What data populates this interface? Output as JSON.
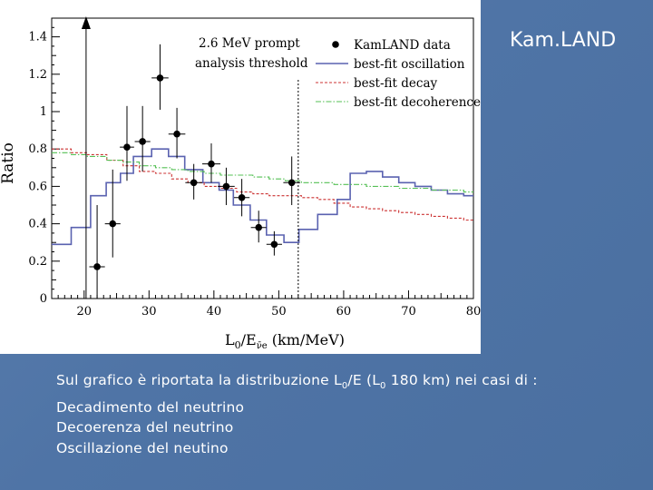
{
  "slide": {
    "title": "Kam.LAND",
    "caption": {
      "line1_pre": "Sul grafico è riportata la distribuzione L",
      "line1_sub1": "0",
      "line1_mid": "/E  (L",
      "line1_sub2": "0",
      "line1_post": " 180 km) nei casi di :",
      "line2": "Decadimento del neutrino",
      "line3": "Decoerenza del neutrino",
      "line4": "Oscillazione del neutino"
    }
  },
  "chart_data": {
    "type": "line",
    "ylabel": "Ratio",
    "xlabel_main": "L",
    "xlabel_sub0": "0",
    "xlabel_slash": "/E",
    "xlabel_subnu": "ν̄e",
    "xlabel_units": "(km/MeV)",
    "annotation_line1": "2.6 MeV prompt",
    "annotation_line2": "analysis threshold",
    "threshold_x": 53,
    "xlim": [
      15,
      80
    ],
    "ylim": [
      0,
      1.5
    ],
    "xticks": [
      20,
      30,
      40,
      50,
      60,
      70,
      80
    ],
    "xtick_labels": [
      "20",
      "30",
      "40",
      "50",
      "60",
      "70",
      "80"
    ],
    "yticks": [
      0,
      0.2,
      0.4,
      0.6,
      0.8,
      1,
      1.2,
      1.4
    ],
    "ytick_labels": [
      "0",
      "0.2",
      "0.4",
      "0.6",
      "0.8",
      "1",
      "1.2",
      "1.4"
    ],
    "legend_position": "top-right",
    "legend": [
      {
        "label": "KamLAND data",
        "style": "marker"
      },
      {
        "label": "best-fit oscillation",
        "style": "solid",
        "color": "#5a62b0"
      },
      {
        "label": "best-fit decay",
        "style": "dashed",
        "color": "#cc3333"
      },
      {
        "label": "best-fit decoherence",
        "style": "dashdot",
        "color": "#55c055"
      }
    ],
    "data_points": [
      {
        "x": 22.0,
        "y": 0.17,
        "yerr_lo": 0.17,
        "yerr_hi": 0.33,
        "xerr": 1.2
      },
      {
        "x": 24.4,
        "y": 0.4,
        "yerr_lo": 0.18,
        "yerr_hi": 0.29,
        "xerr": 1.2
      },
      {
        "x": 26.6,
        "y": 0.81,
        "yerr_lo": 0.18,
        "yerr_hi": 0.22,
        "xerr": 1.1
      },
      {
        "x": 29.0,
        "y": 0.84,
        "yerr_lo": 0.16,
        "yerr_hi": 0.19,
        "xerr": 1.2
      },
      {
        "x": 31.7,
        "y": 1.18,
        "yerr_lo": 0.17,
        "yerr_hi": 0.18,
        "xerr": 1.3
      },
      {
        "x": 34.3,
        "y": 0.88,
        "yerr_lo": 0.13,
        "yerr_hi": 0.14,
        "xerr": 1.3
      },
      {
        "x": 36.9,
        "y": 0.62,
        "yerr_lo": 0.09,
        "yerr_hi": 0.1,
        "xerr": 1.3
      },
      {
        "x": 39.6,
        "y": 0.72,
        "yerr_lo": 0.1,
        "yerr_hi": 0.11,
        "xerr": 1.4
      },
      {
        "x": 41.9,
        "y": 0.6,
        "yerr_lo": 0.1,
        "yerr_hi": 0.1,
        "xerr": 1.3
      },
      {
        "x": 44.3,
        "y": 0.54,
        "yerr_lo": 0.1,
        "yerr_hi": 0.1,
        "xerr": 1.2
      },
      {
        "x": 46.9,
        "y": 0.38,
        "yerr_lo": 0.08,
        "yerr_hi": 0.09,
        "xerr": 1.2
      },
      {
        "x": 49.3,
        "y": 0.29,
        "yerr_lo": 0.06,
        "yerr_hi": 0.07,
        "xerr": 1.2
      },
      {
        "x": 52.0,
        "y": 0.62,
        "yerr_lo": 0.12,
        "yerr_hi": 0.14,
        "xerr": 1.3
      }
    ],
    "up_arrow_x": 20.3,
    "series": [
      {
        "name": "best-fit oscillation",
        "style": "step",
        "color": "#5a62b0",
        "x": [
          15,
          18,
          21,
          23.4,
          25.6,
          27.6,
          30.4,
          33.0,
          35.5,
          38.3,
          40.8,
          43.0,
          45.6,
          48.1,
          50.8,
          53.1,
          56.0,
          59.0,
          61.0,
          63.5,
          66.0,
          68.5,
          71.0,
          73.5,
          76.0,
          78.5,
          80
        ],
        "y": [
          0.29,
          0.38,
          0.55,
          0.62,
          0.67,
          0.76,
          0.8,
          0.76,
          0.69,
          0.62,
          0.58,
          0.5,
          0.42,
          0.34,
          0.3,
          0.37,
          0.45,
          0.53,
          0.67,
          0.68,
          0.65,
          0.62,
          0.6,
          0.58,
          0.56,
          0.55,
          0.55
        ]
      },
      {
        "name": "best-fit decay",
        "style": "step",
        "color": "#cc3333",
        "x": [
          15,
          18,
          20.5,
          23.5,
          26,
          28.5,
          31,
          33.5,
          36,
          38.5,
          41,
          43.5,
          46,
          48.5,
          51,
          53.5,
          56,
          58.5,
          61,
          63.5,
          66,
          68.5,
          71,
          73.5,
          76,
          78.5,
          80
        ],
        "y": [
          0.8,
          0.78,
          0.77,
          0.74,
          0.71,
          0.68,
          0.67,
          0.64,
          0.62,
          0.6,
          0.59,
          0.57,
          0.56,
          0.55,
          0.55,
          0.54,
          0.53,
          0.51,
          0.49,
          0.48,
          0.47,
          0.46,
          0.45,
          0.44,
          0.43,
          0.42,
          0.42
        ]
      },
      {
        "name": "best-fit decoherence",
        "style": "step",
        "color": "#55c055",
        "x": [
          15,
          18,
          20.5,
          23.5,
          26,
          28.5,
          31,
          33.5,
          36,
          38.5,
          41,
          43.5,
          46,
          48.5,
          51,
          53.5,
          56,
          58.5,
          61,
          63.5,
          66,
          68.5,
          71,
          73.5,
          76,
          78.5,
          80
        ],
        "y": [
          0.78,
          0.77,
          0.76,
          0.74,
          0.73,
          0.71,
          0.7,
          0.69,
          0.68,
          0.67,
          0.66,
          0.66,
          0.65,
          0.64,
          0.63,
          0.62,
          0.62,
          0.61,
          0.61,
          0.6,
          0.6,
          0.59,
          0.59,
          0.58,
          0.58,
          0.57,
          0.57
        ]
      }
    ]
  }
}
